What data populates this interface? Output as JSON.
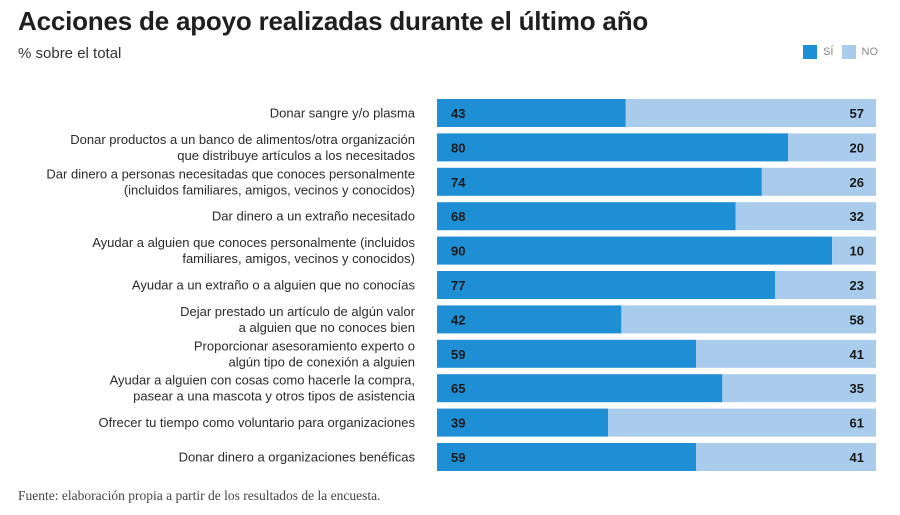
{
  "title": "Acciones de apoyo realizadas durante el último año",
  "subtitle": "% sobre el total",
  "legend": [
    {
      "label": "SÍ",
      "color": "#1e8fd5"
    },
    {
      "label": "NO",
      "color": "#a9cbec"
    }
  ],
  "source": "Fuente: elaboración propia a partir de los resultados de la encuesta.",
  "chart_data": {
    "type": "bar",
    "orientation": "horizontal",
    "stacked": true,
    "title": "Acciones de apoyo realizadas durante el último año",
    "subtitle": "% sobre el total",
    "legend_position": "top-right",
    "xlim": [
      0,
      100
    ],
    "categories": [
      [
        "Donar sangre y/o plasma"
      ],
      [
        "Donar productos a un banco de alimentos/otra organización",
        "que distribuye artículos a los necesitados"
      ],
      [
        "Dar dinero a personas necesitadas que conoces personalmente",
        "(incluidos familiares, amigos, vecinos y conocidos)"
      ],
      [
        "Dar dinero a un extraño necesitado"
      ],
      [
        "Ayudar a alguien que conoces personalmente (incluidos",
        "familiares, amigos, vecinos y conocidos)"
      ],
      [
        "Ayudar a un extraño o a alguien que no conocías"
      ],
      [
        "Dejar prestado un artículo de algún valor",
        "a alguien que no conoces bien"
      ],
      [
        "Proporcionar asesoramiento experto o",
        "algún tipo de conexión a alguien"
      ],
      [
        "Ayudar a alguien con cosas como hacerle la compra,",
        "pasear a una mascota y otros tipos de asistencia"
      ],
      [
        "Ofrecer tu tiempo como voluntario para organizaciones"
      ],
      [
        "Donar dinero a organizaciones benéficas"
      ]
    ],
    "series": [
      {
        "name": "SÍ",
        "color": "#1e8fd5",
        "values": [
          43,
          80,
          74,
          68,
          90,
          77,
          42,
          59,
          65,
          39,
          59
        ]
      },
      {
        "name": "NO",
        "color": "#a9cbec",
        "values": [
          57,
          20,
          26,
          32,
          10,
          23,
          58,
          41,
          35,
          61,
          41
        ]
      }
    ]
  }
}
